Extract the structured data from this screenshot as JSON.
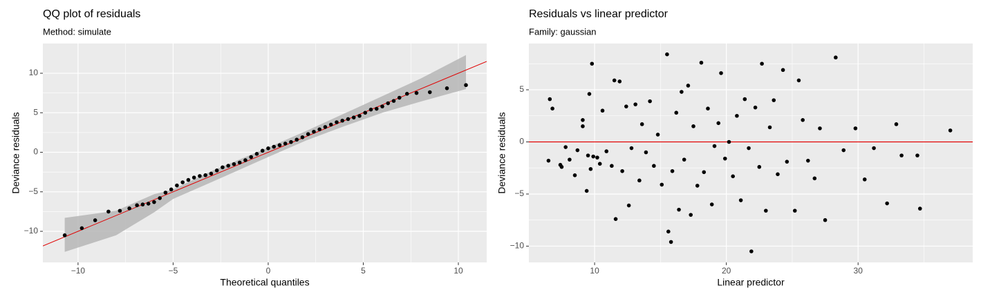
{
  "chart_data": [
    {
      "type": "qq",
      "title": "QQ plot of residuals",
      "subtitle": "Method: simulate",
      "x_label": "Theoretical quantiles",
      "y_label": "Deviance residuals",
      "xlim": [
        -11.85,
        11.49
      ],
      "ylim": [
        -13.93,
        13.76
      ],
      "xticks": [
        {
          "value": -10,
          "label": "−10"
        },
        {
          "value": -5,
          "label": "−5"
        },
        0,
        5,
        10
      ],
      "yticks": [
        {
          "value": -10,
          "label": "−10"
        },
        {
          "value": -5,
          "label": "−5"
        },
        0,
        5,
        10
      ],
      "minor_xticks": [
        -7.5,
        -2.5,
        2.5,
        7.5
      ],
      "minor_yticks": [
        -7.5,
        -2.5,
        2.5,
        7.5
      ],
      "grid": true,
      "color": "#000000",
      "line_color": "#e00000",
      "band_color": "#b3b3b3",
      "ref_line": {
        "intercept": 0,
        "slope": 1
      },
      "band_x": [
        -10.7,
        -8,
        -6,
        -5,
        -3,
        0,
        2,
        4,
        6,
        8,
        10.4
      ],
      "band_lower": [
        -12.6,
        -10.5,
        -7.6,
        -5.9,
        -3.8,
        -0.6,
        1.5,
        3.3,
        5.0,
        6.4,
        8.0
      ],
      "band_upper": [
        -8.3,
        -7.4,
        -5.3,
        -4.7,
        -2.4,
        0.6,
        2.7,
        4.9,
        7.1,
        9.3,
        12.3
      ],
      "x": [
        -10.7,
        -9.8,
        -9.1,
        -8.4,
        -7.8,
        -7.3,
        -6.9,
        -6.6,
        -6.3,
        -6.0,
        -5.7,
        -5.4,
        -5.1,
        -4.8,
        -4.5,
        -4.2,
        -3.9,
        -3.6,
        -3.3,
        -3.0,
        -2.7,
        -2.4,
        -2.1,
        -1.8,
        -1.5,
        -1.2,
        -0.9,
        -0.6,
        -0.3,
        0,
        0.3,
        0.6,
        0.9,
        1.2,
        1.5,
        1.8,
        2.1,
        2.4,
        2.7,
        3.0,
        3.3,
        3.6,
        3.9,
        4.2,
        4.5,
        4.8,
        5.1,
        5.4,
        5.7,
        6.0,
        6.3,
        6.6,
        6.9,
        7.3,
        7.8,
        8.5,
        9.4,
        10.4
      ],
      "values": [
        -10.5,
        -9.6,
        -8.6,
        -7.5,
        -7.4,
        -7.1,
        -6.7,
        -6.6,
        -6.5,
        -6.3,
        -5.8,
        -5.1,
        -4.7,
        -4.2,
        -3.8,
        -3.5,
        -3.2,
        -3.0,
        -2.9,
        -2.7,
        -2.3,
        -1.9,
        -1.7,
        -1.5,
        -1.3,
        -1.0,
        -0.6,
        -0.2,
        0.2,
        0.5,
        0.7,
        0.9,
        1.1,
        1.3,
        1.6,
        1.9,
        2.3,
        2.6,
        2.9,
        3.2,
        3.5,
        3.8,
        4.0,
        4.2,
        4.4,
        4.6,
        5.0,
        5.4,
        5.5,
        5.8,
        6.2,
        6.5,
        6.9,
        7.4,
        7.5,
        7.6,
        8.1,
        8.5
      ]
    },
    {
      "type": "scatter",
      "title": "Residuals vs linear predictor",
      "subtitle": "Family: gaussian",
      "x_label": "Linear predictor",
      "y_label": "Deviance residuals",
      "xlim": [
        5.01,
        38.7
      ],
      "ylim": [
        -11.56,
        9.44
      ],
      "xticks": [
        10,
        20,
        30
      ],
      "yticks": [
        {
          "value": -10,
          "label": "−10"
        },
        {
          "value": -5,
          "label": "−5"
        },
        0,
        5
      ],
      "minor_xticks": [
        15,
        25,
        35
      ],
      "minor_yticks": [
        -7.5,
        -2.5,
        2.5,
        7.5
      ],
      "grid": true,
      "color": "#000000",
      "line_color": "#e00000",
      "hline": 0,
      "x": [
        6.6,
        6.8,
        6.5,
        7.4,
        7.5,
        7.8,
        8.1,
        8.5,
        8.7,
        9.1,
        9.1,
        9.4,
        9.5,
        9.6,
        9.7,
        9.8,
        9.9,
        10.2,
        10.4,
        10.6,
        10.9,
        11.3,
        11.5,
        11.6,
        11.9,
        12.1,
        12.4,
        12.6,
        12.8,
        13.1,
        13.4,
        13.6,
        13.9,
        14.2,
        14.5,
        14.8,
        15.1,
        15.5,
        15.6,
        15.8,
        15.9,
        16.2,
        16.4,
        16.6,
        16.8,
        17.1,
        17.3,
        17.5,
        17.8,
        18.1,
        18.3,
        18.6,
        18.9,
        19.1,
        19.4,
        19.6,
        19.9,
        20.2,
        20.5,
        20.8,
        21.1,
        21.4,
        21.7,
        21.9,
        22.2,
        22.5,
        22.7,
        23.0,
        23.3,
        23.6,
        23.9,
        24.3,
        24.6,
        25.2,
        25.5,
        25.8,
        26.2,
        26.7,
        27.1,
        27.5,
        28.3,
        28.9,
        29.8,
        30.5,
        31.2,
        32.2,
        32.9,
        33.3,
        34.5,
        34.7,
        37.0
      ],
      "values": [
        4.1,
        3.2,
        -1.8,
        -2.2,
        -2.4,
        -0.5,
        -1.7,
        -3.2,
        -0.8,
        1.5,
        2.1,
        -4.7,
        -1.3,
        4.6,
        -2.6,
        7.5,
        -1.4,
        -1.5,
        -2.1,
        3.0,
        -0.9,
        -2.3,
        5.9,
        -7.4,
        5.8,
        -2.8,
        3.4,
        -6.1,
        -0.6,
        3.6,
        -3.7,
        1.7,
        -1.0,
        3.9,
        -2.3,
        0.7,
        -4.1,
        8.4,
        -8.6,
        -9.6,
        -2.8,
        2.8,
        -6.5,
        4.8,
        -1.7,
        5.4,
        -7.0,
        1.5,
        -4.2,
        7.6,
        -2.9,
        3.2,
        -6.0,
        -0.4,
        1.8,
        6.6,
        -1.6,
        0.0,
        -3.3,
        2.5,
        -5.6,
        4.1,
        -0.6,
        -10.5,
        3.3,
        -2.4,
        7.5,
        -6.6,
        1.4,
        4.0,
        -3.1,
        6.9,
        -1.9,
        -6.6,
        5.9,
        2.1,
        -1.8,
        -3.5,
        1.3,
        -7.5,
        8.1,
        -0.8,
        1.3,
        -3.6,
        -0.6,
        -5.9,
        1.7,
        -1.3,
        -1.3,
        -6.4,
        1.1
      ]
    }
  ]
}
